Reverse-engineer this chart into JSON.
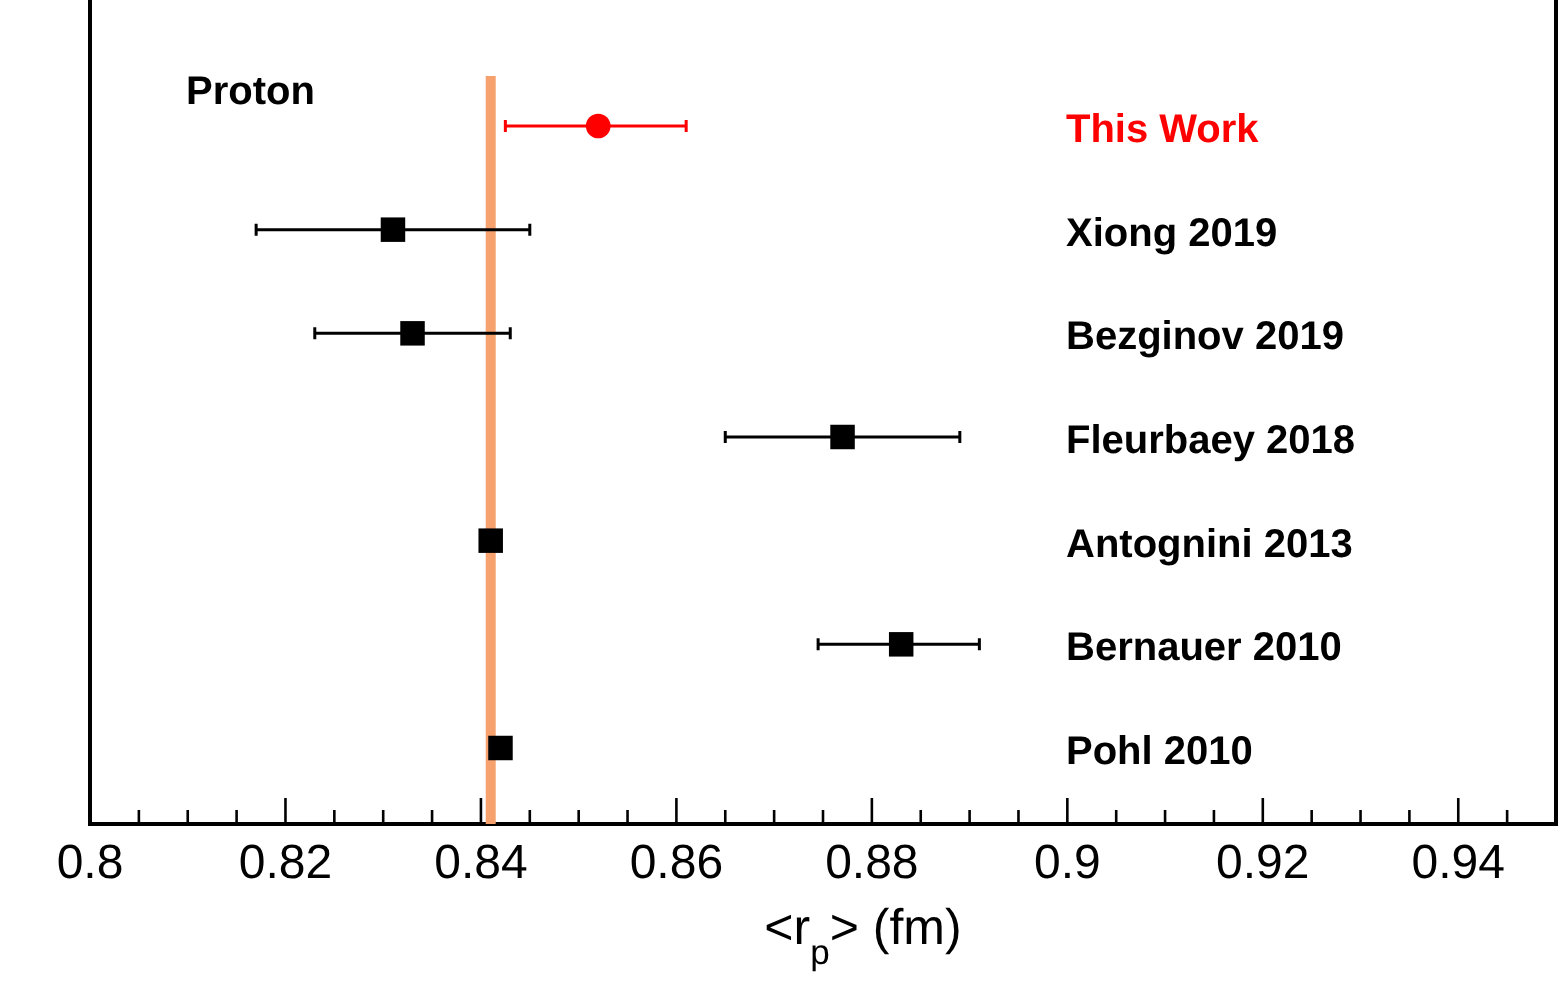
{
  "chart_data": {
    "type": "scatter",
    "orientation": "horizontal",
    "categories": [
      "This Work",
      "Xiong 2019",
      "Bezginov 2019",
      "Fleurbaey 2018",
      "Antognini 2013",
      "Bernauer 2010",
      "Pohl 2010"
    ],
    "series": [
      {
        "color": "#ff0000",
        "marker": "circle",
        "values": [
          0.852,
          null,
          null,
          null,
          null,
          null,
          null
        ],
        "errors": [
          [
            0.8425,
            0.861
          ],
          null,
          null,
          null,
          null,
          null,
          null
        ]
      },
      {
        "color": "#000000",
        "marker": "square",
        "values": [
          null,
          0.831,
          0.833,
          0.877,
          0.841,
          0.883,
          0.842
        ],
        "errors": [
          null,
          [
            0.817,
            0.845
          ],
          [
            0.823,
            0.843
          ],
          [
            0.865,
            0.889
          ],
          null,
          [
            0.8745,
            0.891
          ],
          null
        ]
      }
    ],
    "xlabel": "<r$_{p}$> (fm)",
    "xlim": [
      0.8,
      0.95
    ],
    "xticks": [
      0.8,
      {
        "value": 0.805,
        "label": null
      },
      {
        "value": 0.81,
        "label": null
      },
      {
        "value": 0.815,
        "label": null
      },
      0.82,
      {
        "value": 0.825,
        "label": null
      },
      {
        "value": 0.83,
        "label": null
      },
      {
        "value": 0.835,
        "label": null
      },
      0.84,
      {
        "value": 0.845,
        "label": null
      },
      {
        "value": 0.85,
        "label": null
      },
      {
        "value": 0.855,
        "label": null
      },
      0.86,
      {
        "value": 0.865,
        "label": null
      },
      {
        "value": 0.87,
        "label": null
      },
      {
        "value": 0.875,
        "label": null
      },
      0.88,
      {
        "value": 0.885,
        "label": null
      },
      {
        "value": 0.89,
        "label": null
      },
      {
        "value": 0.895,
        "label": null
      },
      0.9,
      {
        "value": 0.905,
        "label": null
      },
      {
        "value": 0.91,
        "label": null
      },
      {
        "value": 0.915,
        "label": null
      },
      0.92,
      {
        "value": 0.925,
        "label": null
      },
      {
        "value": 0.93,
        "label": null
      },
      {
        "value": 0.935,
        "label": null
      },
      0.94,
      {
        "value": 0.945,
        "label": null
      }
    ],
    "ref_lines": [
      {
        "axis": "x",
        "value": 0.841,
        "color": "#f7a26e"
      }
    ],
    "annotations": [
      "Proton"
    ]
  }
}
